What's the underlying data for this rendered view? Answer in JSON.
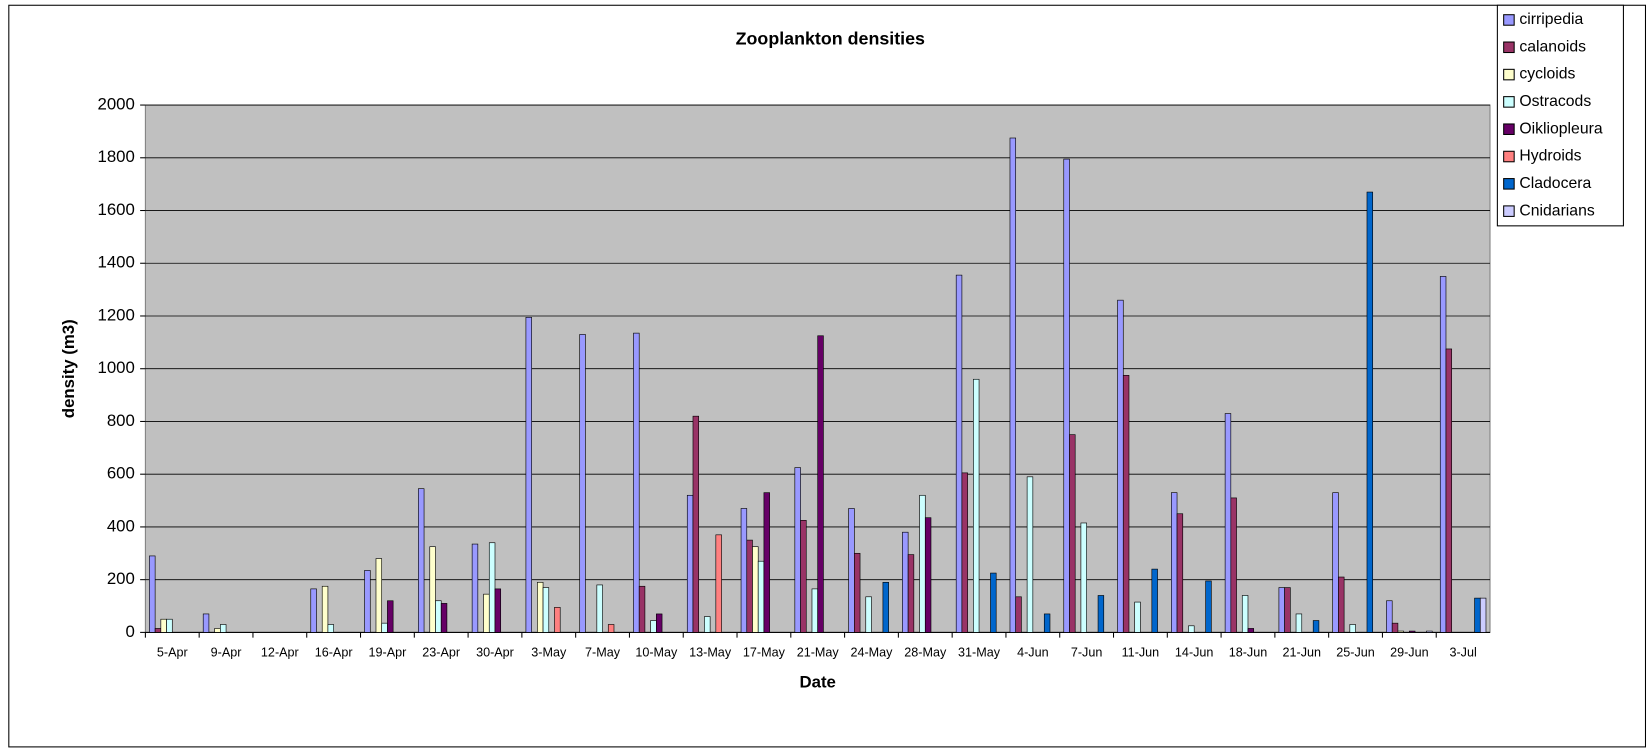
{
  "chart_data": {
    "type": "bar",
    "title": "Zooplankton densities",
    "x_label": "Date",
    "y_label": "density (m3)",
    "categories": [
      "5-Apr",
      "9-Apr",
      "12-Apr",
      "16-Apr",
      "19-Apr",
      "23-Apr",
      "30-Apr",
      "3-May",
      "7-May",
      "10-May",
      "13-May",
      "17-May",
      "21-May",
      "24-May",
      "28-May",
      "31-May",
      "4-Jun",
      "7-Jun",
      "11-Jun",
      "14-Jun",
      "18-Jun",
      "21-Jun",
      "25-Jun",
      "29-Jun",
      "3-Jul"
    ],
    "series": [
      {
        "name": "cirripedia",
        "color": "#9999ff",
        "values": [
          290,
          70,
          0,
          165,
          235,
          545,
          335,
          1195,
          1130,
          1135,
          520,
          470,
          625,
          470,
          380,
          1355,
          1875,
          1795,
          1260,
          530,
          830,
          170,
          530,
          120,
          1350
        ]
      },
      {
        "name": "calanoids",
        "color": "#993366",
        "values": [
          15,
          0,
          0,
          0,
          0,
          0,
          0,
          0,
          0,
          175,
          820,
          350,
          425,
          300,
          295,
          605,
          135,
          750,
          975,
          450,
          510,
          170,
          210,
          35,
          1075
        ]
      },
      {
        "name": "cycloids",
        "color": "#ffffcc",
        "values": [
          50,
          15,
          0,
          175,
          280,
          325,
          145,
          190,
          0,
          0,
          0,
          325,
          0,
          0,
          0,
          0,
          0,
          0,
          0,
          0,
          0,
          0,
          0,
          5,
          0
        ]
      },
      {
        "name": "Ostracods",
        "color": "#ccffff",
        "values": [
          50,
          30,
          0,
          30,
          35,
          120,
          340,
          170,
          180,
          45,
          60,
          270,
          165,
          135,
          520,
          960,
          590,
          415,
          115,
          25,
          140,
          70,
          30,
          0,
          0
        ]
      },
      {
        "name": "Oikliopleura",
        "color": "#660066",
        "values": [
          0,
          0,
          0,
          0,
          120,
          110,
          165,
          0,
          0,
          70,
          0,
          530,
          1125,
          0,
          435,
          0,
          0,
          0,
          0,
          0,
          15,
          0,
          0,
          5,
          0
        ]
      },
      {
        "name": "Hydroids",
        "color": "#ff8080",
        "values": [
          0,
          0,
          0,
          0,
          0,
          0,
          0,
          95,
          30,
          0,
          370,
          0,
          0,
          0,
          0,
          0,
          0,
          0,
          0,
          0,
          0,
          0,
          0,
          0,
          0
        ]
      },
      {
        "name": "Cladocera",
        "color": "#0066cc",
        "values": [
          0,
          0,
          0,
          0,
          0,
          0,
          0,
          0,
          0,
          0,
          0,
          0,
          0,
          190,
          0,
          225,
          70,
          140,
          240,
          195,
          0,
          45,
          1670,
          0,
          130
        ]
      },
      {
        "name": "Cnidarians",
        "color": "#ccccff",
        "values": [
          0,
          0,
          0,
          0,
          0,
          0,
          0,
          0,
          0,
          0,
          0,
          0,
          0,
          0,
          0,
          0,
          0,
          0,
          0,
          0,
          0,
          0,
          0,
          5,
          130
        ]
      }
    ],
    "ylim": [
      0,
      2000
    ],
    "yticks": [
      0,
      200,
      400,
      600,
      800,
      1000,
      1200,
      1400,
      1600,
      1800,
      2000
    ],
    "grid": true
  }
}
